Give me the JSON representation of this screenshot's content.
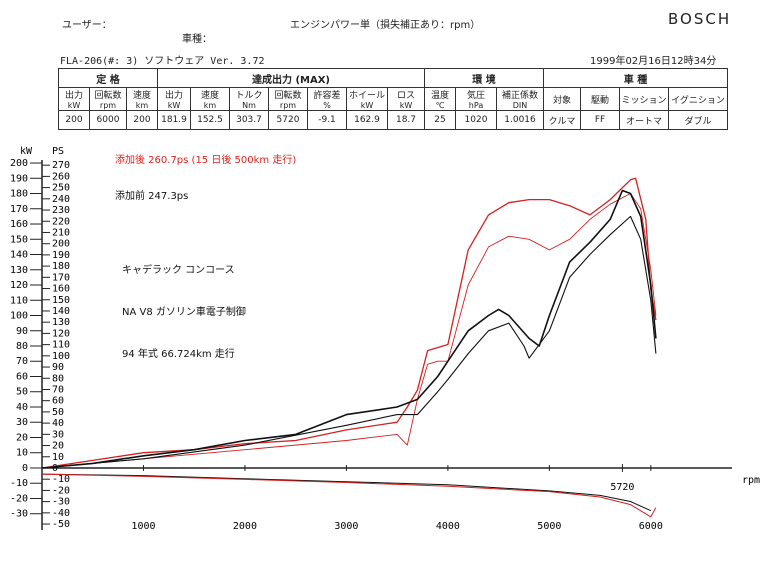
{
  "header": {
    "user_label": "ユーザー：",
    "car_label": "車種：",
    "title": "エンジンパワー単（損失補正あり：rpm）",
    "brand": "BOSCH",
    "model": "FLA-206(#: 3)  ソフトウェア Ver. 3.72",
    "date": "1999年02月16日12時34分"
  },
  "table": {
    "groups": [
      "定 格",
      "達成出力 (MAX)",
      "環 境",
      "車 種"
    ],
    "headers": [
      {
        "name": "出力",
        "unit": "kW"
      },
      {
        "name": "回転数",
        "unit": "rpm"
      },
      {
        "name": "速度",
        "unit": "km"
      },
      {
        "name": "出力",
        "unit": "kW"
      },
      {
        "name": "速度",
        "unit": "km"
      },
      {
        "name": "トルク",
        "unit": "Nm"
      },
      {
        "name": "回転数",
        "unit": "rpm"
      },
      {
        "name": "許容差",
        "unit": "%"
      },
      {
        "name": "ホイール",
        "unit": "kW"
      },
      {
        "name": "ロス",
        "unit": "kW"
      },
      {
        "name": "温度",
        "unit": "℃"
      },
      {
        "name": "気圧",
        "unit": "hPa"
      },
      {
        "name": "補正係数",
        "unit": "DIN"
      },
      {
        "name": "対象"
      },
      {
        "name": "駆動"
      },
      {
        "name": "ミッション"
      },
      {
        "name": "イグニション"
      }
    ],
    "row": [
      "200",
      "6000",
      "200",
      "181.9",
      "152.5",
      "303.7",
      "5720",
      "-9.1",
      "162.9",
      "18.7",
      "25",
      "1020",
      "1.0016",
      "クルマ",
      "FF",
      "オートマ",
      "ダブル"
    ]
  },
  "chart_data": {
    "type": "line",
    "ylabel": "kW",
    "y2label": "PS",
    "xlabel": "rpm",
    "xlim": [
      0,
      6800
    ],
    "xticks": [
      1000,
      2000,
      3000,
      4000,
      5000,
      6000
    ],
    "ylim": [
      -37,
      205
    ],
    "yticks": [
      -30,
      -20,
      -10,
      0,
      10,
      20,
      30,
      40,
      50,
      60,
      70,
      80,
      90,
      100,
      110,
      120,
      130,
      140,
      150,
      160,
      170,
      180,
      190,
      200
    ],
    "y2lim": [
      -50.31,
      278.72
    ],
    "y2ticks": [
      -50,
      -40,
      -30,
      -20,
      -10,
      0,
      10,
      20,
      30,
      40,
      50,
      60,
      70,
      80,
      90,
      100,
      110,
      120,
      130,
      140,
      150,
      160,
      170,
      180,
      190,
      200,
      210,
      220,
      230,
      240,
      250,
      260,
      270
    ],
    "x_marker": 5720,
    "grid": false,
    "annotations": [
      {
        "text": "添加後 260.7ps (15 日後 500km 走行)",
        "color": "#e0201c"
      },
      {
        "text": "添加前 247.3ps",
        "color": "#111111"
      },
      {
        "text": "キャデラック コンコース",
        "color": "#111111"
      },
      {
        "text": "NA V8 ガソリン車電子制御",
        "color": "#111111"
      },
      {
        "text": "94 年式 66.724km 走行",
        "color": "#111111"
      }
    ],
    "series": [
      {
        "color": "#d42020",
        "width": 1.3,
        "x": [
          0,
          500,
          1000,
          1500,
          2000,
          2500,
          3000,
          3500,
          3600,
          3700,
          3800,
          4000,
          4200,
          4400,
          4600,
          4800,
          5000,
          5200,
          5400,
          5600,
          5800,
          5850,
          5950,
          6000,
          6050
        ],
        "values": [
          0,
          5,
          10,
          12,
          16,
          18,
          25,
          30,
          40,
          51,
          77,
          81,
          143,
          166,
          174,
          176,
          176,
          172,
          166,
          176,
          189,
          190,
          163,
          117,
          97
        ]
      },
      {
        "color": "#d42020",
        "width": 0.9,
        "x": [
          0,
          1000,
          2000,
          3000,
          3500,
          3600,
          3700,
          3800,
          3900,
          4000,
          4200,
          4400,
          4600,
          4800,
          5000,
          5200,
          5400,
          5600,
          5800,
          5900,
          6000,
          6050
        ],
        "values": [
          0,
          6,
          12,
          18,
          22,
          15,
          45,
          68,
          70,
          70,
          120,
          145,
          152,
          150,
          143,
          150,
          163,
          173,
          180,
          170,
          130,
          100
        ]
      },
      {
        "color": "#111111",
        "width": 1.6,
        "x": [
          0,
          500,
          1000,
          1500,
          2000,
          2500,
          3000,
          3500,
          3700,
          3900,
          4000,
          4200,
          4400,
          4500,
          4600,
          4800,
          4900,
          5000,
          5200,
          5400,
          5600,
          5720,
          5800,
          5900,
          6000,
          6050
        ],
        "values": [
          0,
          3,
          8,
          12,
          18,
          22,
          35,
          40,
          45,
          60,
          70,
          90,
          100,
          104,
          100,
          85,
          80,
          100,
          135,
          148,
          163,
          182,
          180,
          165,
          120,
          85
        ]
      },
      {
        "color": "#111111",
        "width": 1.1,
        "x": [
          0,
          1000,
          2000,
          3000,
          3500,
          3700,
          3900,
          4000,
          4200,
          4400,
          4600,
          4750,
          4800,
          5000,
          5200,
          5400,
          5600,
          5800,
          5900,
          6000,
          6050
        ],
        "values": [
          0,
          6,
          15,
          28,
          35,
          35,
          50,
          58,
          75,
          90,
          95,
          80,
          72,
          90,
          125,
          140,
          153,
          165,
          150,
          110,
          75
        ]
      },
      {
        "color": "#111111",
        "width": 1,
        "x": [
          0,
          1000,
          2000,
          3000,
          4000,
          5000,
          5500,
          5800,
          6000
        ],
        "values": [
          -4,
          -5,
          -7,
          -9,
          -11,
          -15,
          -18,
          -22,
          -28
        ]
      },
      {
        "color": "#d42020",
        "width": 1,
        "x": [
          0,
          1000,
          2000,
          3000,
          4000,
          5000,
          5500,
          5800,
          6000,
          6050
        ],
        "values": [
          -4,
          -5.5,
          -7.5,
          -9.5,
          -12,
          -15.5,
          -19,
          -24,
          -32,
          -26
        ]
      }
    ]
  }
}
